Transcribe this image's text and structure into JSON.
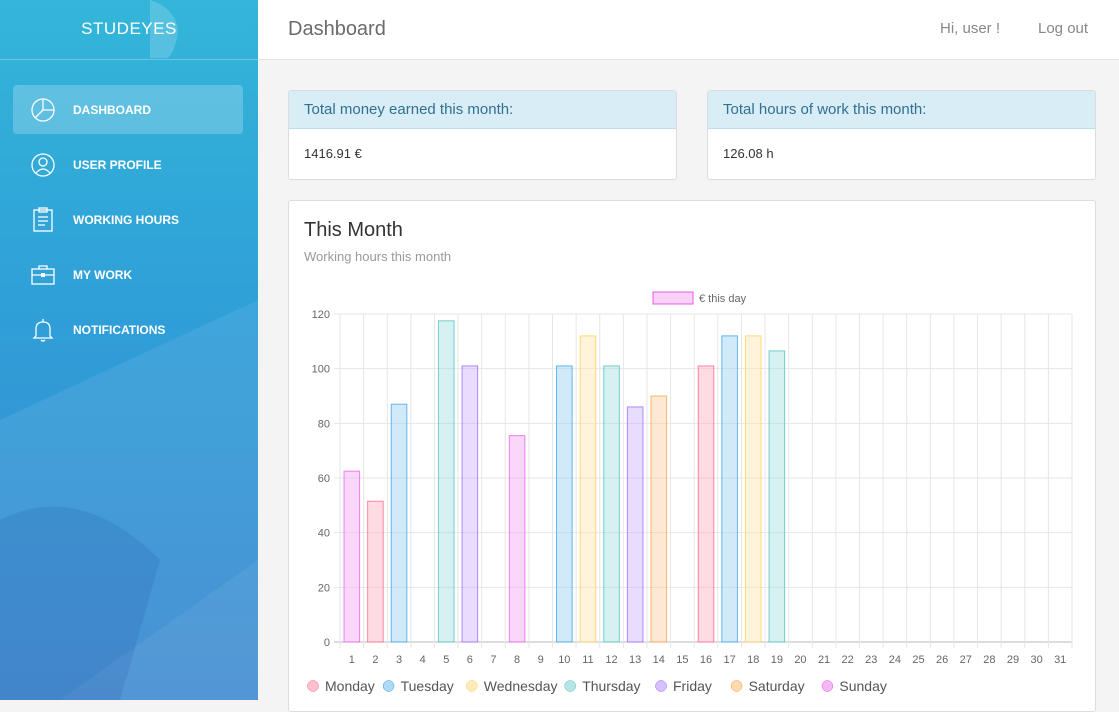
{
  "brand": "STUDEYES",
  "nav": [
    {
      "label": "DASHBOARD",
      "icon": "pie-chart-icon",
      "active": true
    },
    {
      "label": "USER PROFILE",
      "icon": "user-icon",
      "active": false
    },
    {
      "label": "WORKING HOURS",
      "icon": "clipboard-icon",
      "active": false
    },
    {
      "label": "MY WORK",
      "icon": "briefcase-icon",
      "active": false
    },
    {
      "label": "NOTIFICATIONS",
      "icon": "bell-icon",
      "active": false
    }
  ],
  "header": {
    "title": "Dashboard",
    "greeting": "Hi, user !",
    "logout": "Log out"
  },
  "stats": {
    "money": {
      "label": "Total money earned this month:",
      "value": "1416.91 €"
    },
    "hours": {
      "label": "Total hours of work this month:",
      "value": "126.08 h"
    }
  },
  "panel": {
    "title": "This Month",
    "subtitle": "Working hours this month"
  },
  "chart_data": {
    "type": "bar",
    "title": "This Month",
    "subtitle": "Working hours this month",
    "dataset_label": "€ this day",
    "categories": [
      "1",
      "2",
      "3",
      "4",
      "5",
      "6",
      "7",
      "8",
      "9",
      "10",
      "11",
      "12",
      "13",
      "14",
      "15",
      "16",
      "17",
      "18",
      "19",
      "20",
      "21",
      "22",
      "23",
      "24",
      "25",
      "26",
      "27",
      "28",
      "29",
      "30",
      "31"
    ],
    "values": [
      62.5,
      51.5,
      87,
      0,
      117.5,
      101,
      0,
      75.5,
      0,
      101,
      112,
      101,
      86,
      90,
      0,
      101,
      112,
      112,
      106.5,
      0,
      0,
      0,
      0,
      0,
      0,
      0,
      0,
      0,
      0,
      0,
      0
    ],
    "weekdays": [
      "Sunday",
      "Monday",
      "Tuesday",
      "Wednesday",
      "Thursday",
      "Friday",
      "Saturday",
      "Sunday",
      "Monday",
      "Tuesday",
      "Wednesday",
      "Thursday",
      "Friday",
      "Saturday",
      "Sunday",
      "Monday",
      "Tuesday",
      "Wednesday",
      "Thursday",
      "Friday",
      "Saturday",
      "Sunday",
      "Monday",
      "Tuesday",
      "Wednesday",
      "Thursday",
      "Friday",
      "Saturday",
      "Sunday",
      "Monday",
      "Tuesday"
    ],
    "ylim": [
      0,
      120
    ],
    "yticks": [
      0,
      20,
      40,
      60,
      80,
      100,
      120
    ],
    "grid": true,
    "legend_top": "top-center",
    "legend_bottom": [
      {
        "name": "Monday",
        "fill": "#ffb1c1",
        "stroke": "#ff6384"
      },
      {
        "name": "Tuesday",
        "fill": "#9ad0f5",
        "stroke": "#36a2eb"
      },
      {
        "name": "Wednesday",
        "fill": "#ffe6aa",
        "stroke": "#ffcd56"
      },
      {
        "name": "Thursday",
        "fill": "#a5dfdf",
        "stroke": "#4bc0c0"
      },
      {
        "name": "Friday",
        "fill": "#ccb2ff",
        "stroke": "#9966ff"
      },
      {
        "name": "Saturday",
        "fill": "#ffcf9f",
        "stroke": "#ff9f40"
      },
      {
        "name": "Sunday",
        "fill": "#f3a6f3",
        "stroke": "#e55ce5"
      }
    ]
  },
  "colors": {
    "sidebar_top": "#33b6d9",
    "sidebar_bottom": "#3a87d0",
    "card_head_bg": "#d9edf7",
    "card_head_text": "#31708f"
  }
}
